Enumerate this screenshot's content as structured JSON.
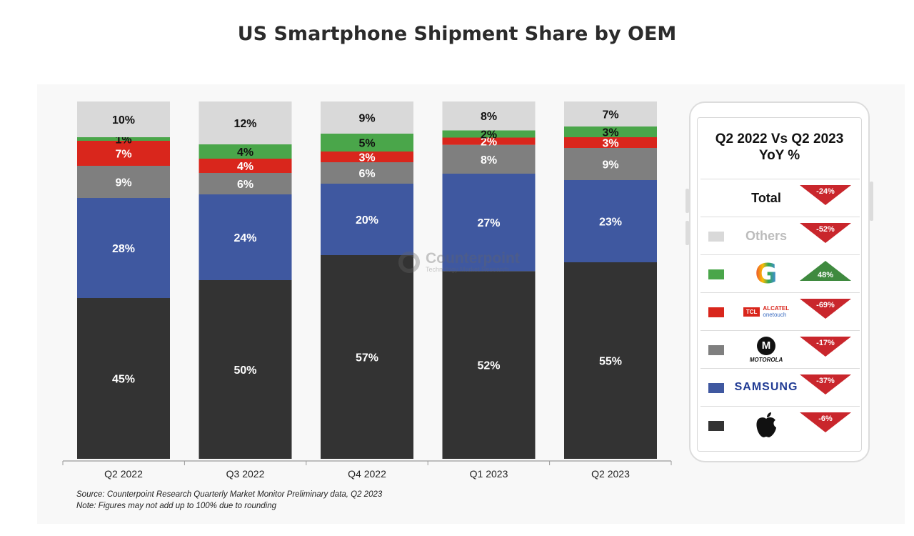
{
  "title": "US Smartphone Shipment Share by OEM",
  "colors": {
    "apple": "#333333",
    "samsung": "#3f58a0",
    "motorola": "#7f7f7f",
    "tcl": "#d9261c",
    "google": "#4aa64a",
    "others": "#d9d9d9",
    "up": "#3f8a3f",
    "down": "#c9262c"
  },
  "chart_data": {
    "type": "bar",
    "stacked": true,
    "categories": [
      "Q2 2022",
      "Q3 2022",
      "Q4 2022",
      "Q1 2023",
      "Q2 2023"
    ],
    "series": [
      {
        "name": "Apple",
        "color_key": "apple",
        "values": [
          45,
          50,
          57,
          52,
          55
        ],
        "labels": [
          "45%",
          "50%",
          "57%",
          "52%",
          "55%"
        ]
      },
      {
        "name": "Samsung",
        "color_key": "samsung",
        "values": [
          28,
          24,
          20,
          27,
          23
        ],
        "labels": [
          "28%",
          "24%",
          "20%",
          "27%",
          "23%"
        ]
      },
      {
        "name": "Motorola",
        "color_key": "motorola",
        "values": [
          9,
          6,
          6,
          8,
          9
        ],
        "labels": [
          "9%",
          "6%",
          "6%",
          "8%",
          "9%"
        ]
      },
      {
        "name": "TCL Alcatel",
        "color_key": "tcl",
        "values": [
          7,
          4,
          3,
          2,
          3
        ],
        "labels": [
          "7%",
          "4%",
          "3%",
          "2%",
          "3%"
        ]
      },
      {
        "name": "Google",
        "color_key": "google",
        "values": [
          1,
          4,
          5,
          2,
          3
        ],
        "labels": [
          "1%",
          "4%",
          "5%",
          "2%",
          "3%"
        ]
      },
      {
        "name": "Others",
        "color_key": "others",
        "values": [
          10,
          12,
          9,
          8,
          7
        ],
        "labels": [
          "10%",
          "12%",
          "9%",
          "8%",
          "7%"
        ]
      }
    ],
    "ylim": [
      0,
      100
    ]
  },
  "source_line": "Source: Counterpoint Research Quarterly Market Monitor Preliminary data, Q2 2023",
  "note_line": "Note: Figures may not add up to 100% due to rounding",
  "watermark": {
    "name": "Counterpoint",
    "sub": "Technology Market Research"
  },
  "legend": {
    "title_line1": "Q2 2022 Vs Q2 2023",
    "title_line2": "YoY %",
    "rows": [
      {
        "name": "Total",
        "swatch_key": null,
        "change": -24,
        "label": "-24%"
      },
      {
        "name": "Others",
        "swatch_key": "others",
        "change": -52,
        "label": "-52%"
      },
      {
        "name": "G",
        "swatch_key": "google",
        "change": 48,
        "label": "48%"
      },
      {
        "name": "TCL",
        "name2": "ALCATEL",
        "name3": "onetouch",
        "swatch_key": "tcl",
        "change": -69,
        "label": "-69%"
      },
      {
        "name": "MOTOROLA",
        "swatch_key": "motorola",
        "change": -17,
        "label": "-17%"
      },
      {
        "name": "SAMSUNG",
        "swatch_key": "samsung",
        "change": -37,
        "label": "-37%"
      },
      {
        "name": "apple",
        "swatch_key": "apple",
        "change": -6,
        "label": "-6%"
      }
    ]
  }
}
